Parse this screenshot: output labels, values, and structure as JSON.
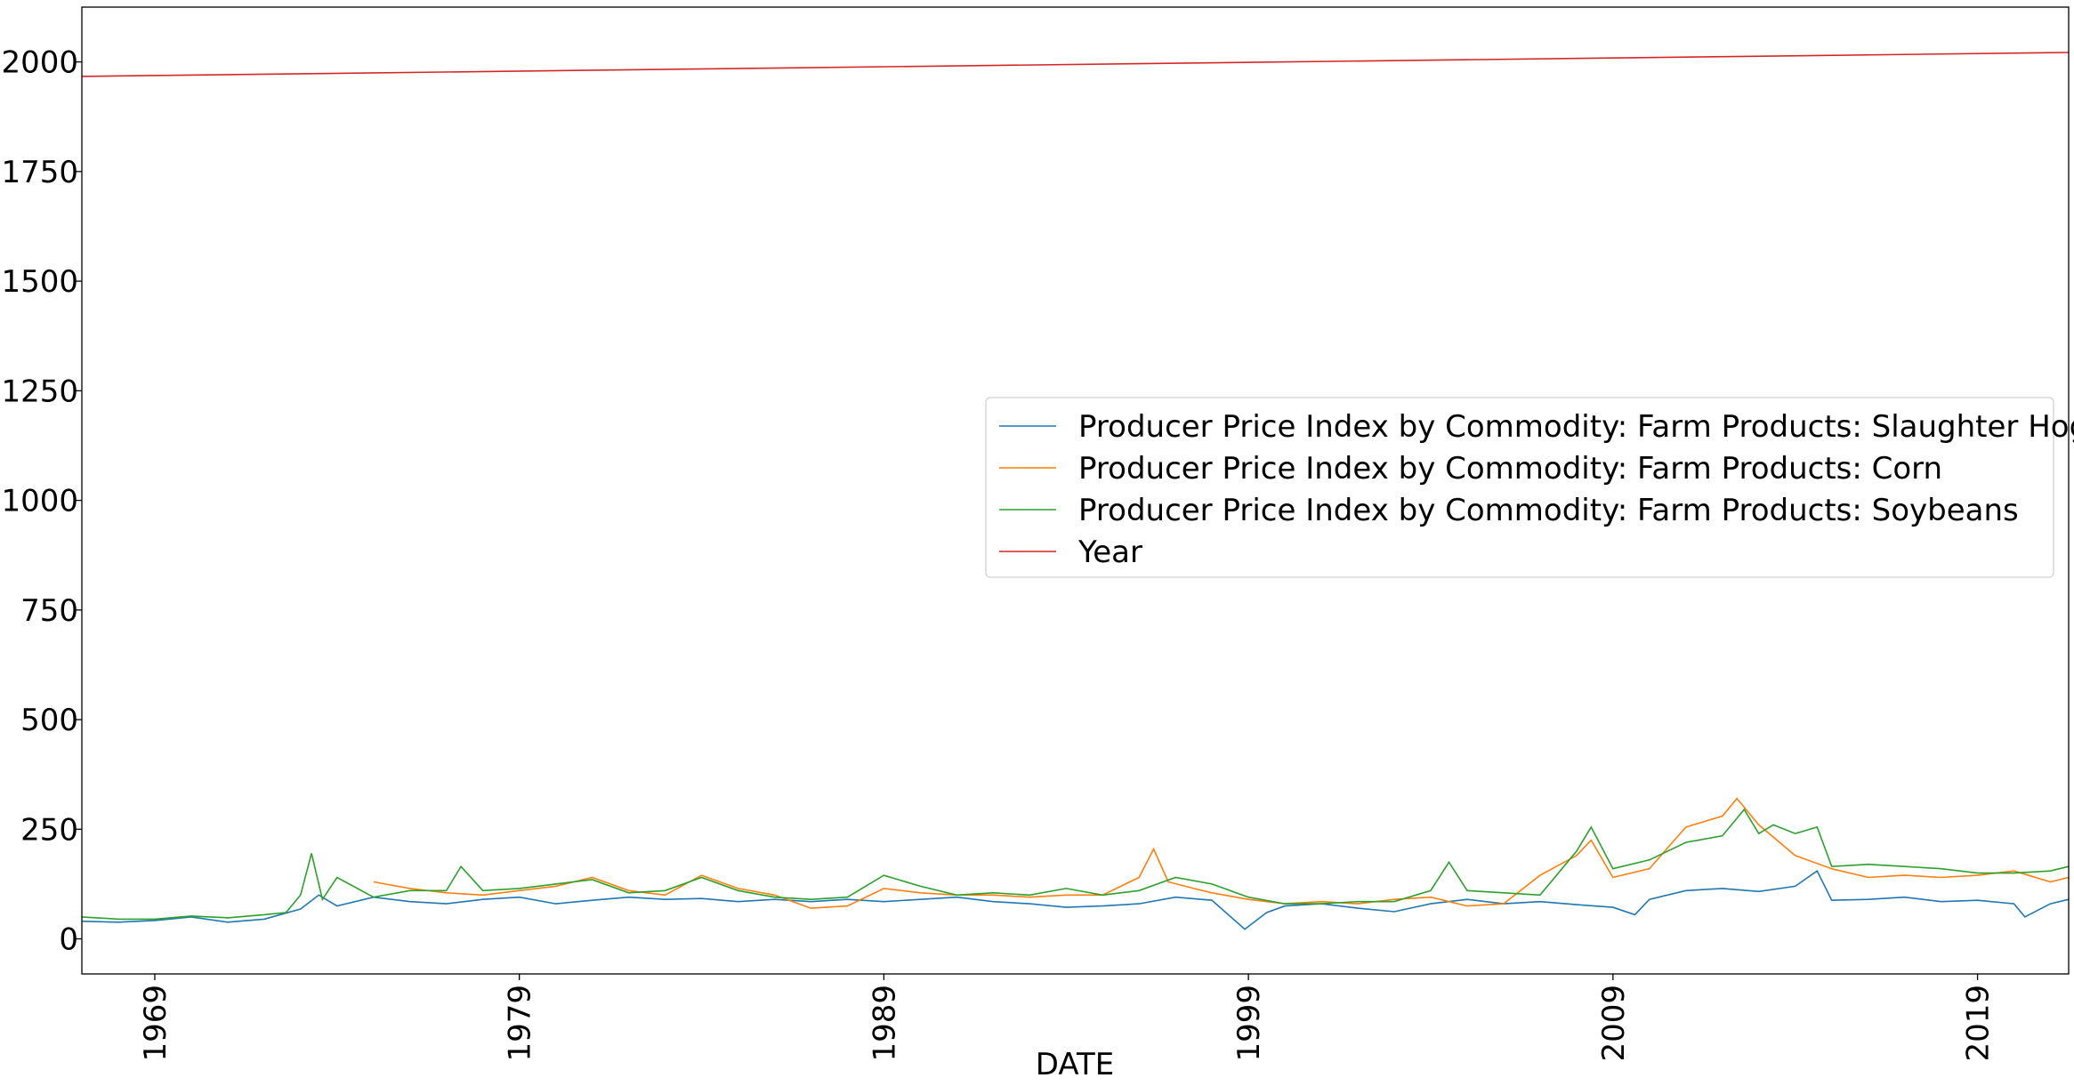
{
  "chart_data": {
    "type": "line",
    "title": "",
    "xlabel": "DATE",
    "ylabel": "",
    "xlim": [
      1967,
      2021.5
    ],
    "ylim": [
      -80,
      2125
    ],
    "x_ticks": [
      1969,
      1979,
      1989,
      1999,
      2009,
      2019
    ],
    "y_ticks": [
      0,
      250,
      500,
      750,
      1000,
      1250,
      1500,
      1750,
      2000
    ],
    "grid": false,
    "legend_position": "center-right",
    "series": [
      {
        "name": "Producer Price Index by Commodity: Farm Products: Slaughter Hogs",
        "color": "#1f77b4",
        "x": [
          1967,
          1968,
          1969,
          1970,
          1971,
          1972,
          1973,
          1973.5,
          1974,
          1975,
          1976,
          1977,
          1978,
          1979,
          1980,
          1981,
          1982,
          1983,
          1984,
          1985,
          1986,
          1987,
          1988,
          1989,
          1990,
          1991,
          1992,
          1993,
          1994,
          1995,
          1996,
          1997,
          1998,
          1998.9,
          1999.5,
          2000,
          2001,
          2002,
          2003,
          2004,
          2005,
          2006,
          2007,
          2008,
          2009,
          2009.6,
          2010,
          2011,
          2012,
          2013,
          2014,
          2014.6,
          2015,
          2016,
          2017,
          2018,
          2019,
          2020,
          2020.3,
          2021,
          2021.5
        ],
        "values": [
          40,
          38,
          42,
          50,
          38,
          45,
          68,
          100,
          75,
          95,
          85,
          80,
          90,
          95,
          80,
          88,
          95,
          90,
          92,
          85,
          90,
          85,
          90,
          85,
          90,
          95,
          85,
          80,
          72,
          75,
          80,
          95,
          88,
          22,
          60,
          75,
          80,
          70,
          62,
          80,
          90,
          80,
          85,
          78,
          72,
          55,
          90,
          110,
          115,
          108,
          120,
          155,
          88,
          90,
          95,
          85,
          88,
          80,
          50,
          80,
          90
        ]
      },
      {
        "name": "Producer Price Index by Commodity: Farm Products: Corn",
        "color": "#ff7f0e",
        "x": [
          1975,
          1976,
          1977,
          1978,
          1979,
          1980,
          1981,
          1982,
          1983,
          1984,
          1985,
          1986,
          1987,
          1988,
          1989,
          1990,
          1991,
          1992,
          1993,
          1994,
          1995,
          1996,
          1996.4,
          1996.8,
          1997.5,
          1998,
          1999,
          2000,
          2001,
          2002,
          2003,
          2004,
          2005,
          2006,
          2007,
          2008,
          2008.4,
          2009,
          2010,
          2011,
          2012,
          2012.4,
          2013,
          2014,
          2015,
          2016,
          2017,
          2018,
          2019,
          2020,
          2021,
          2021.5
        ],
        "values": [
          130,
          115,
          105,
          100,
          110,
          120,
          140,
          110,
          100,
          145,
          115,
          100,
          70,
          75,
          115,
          105,
          100,
          100,
          95,
          100,
          100,
          140,
          205,
          130,
          115,
          105,
          90,
          80,
          85,
          80,
          90,
          95,
          75,
          80,
          145,
          190,
          225,
          140,
          160,
          255,
          280,
          320,
          260,
          190,
          160,
          140,
          145,
          140,
          145,
          155,
          130,
          140
        ]
      },
      {
        "name": "Producer Price Index by Commodity: Farm Products: Soybeans",
        "color": "#2ca02c",
        "x": [
          1967,
          1968,
          1969,
          1970,
          1971,
          1972,
          1972.6,
          1973,
          1973.3,
          1973.6,
          1974,
          1975,
          1976,
          1977,
          1977.4,
          1978,
          1979,
          1980,
          1981,
          1982,
          1983,
          1984,
          1985,
          1986,
          1987,
          1988,
          1989,
          1990,
          1991,
          1992,
          1993,
          1994,
          1995,
          1996,
          1997,
          1998,
          1999,
          2000,
          2001,
          2002,
          2003,
          2004,
          2004.5,
          2005,
          2006,
          2007,
          2008,
          2008.4,
          2009,
          2010,
          2011,
          2012,
          2012.6,
          2013,
          2013.4,
          2014,
          2014.6,
          2015,
          2016,
          2017,
          2018,
          2019,
          2020,
          2021,
          2021.5
        ],
        "values": [
          50,
          45,
          45,
          52,
          48,
          55,
          60,
          100,
          195,
          90,
          140,
          95,
          110,
          110,
          165,
          110,
          115,
          125,
          135,
          105,
          110,
          140,
          110,
          95,
          90,
          95,
          145,
          120,
          100,
          105,
          100,
          115,
          100,
          110,
          140,
          125,
          95,
          80,
          80,
          85,
          85,
          110,
          175,
          110,
          105,
          100,
          200,
          255,
          160,
          180,
          220,
          235,
          295,
          240,
          260,
          240,
          255,
          165,
          170,
          165,
          160,
          150,
          150,
          155,
          165
        ]
      },
      {
        "name": "Year",
        "color": "#d62728",
        "x": [
          1967,
          2021.5
        ],
        "values": [
          1967,
          2021.5
        ]
      }
    ]
  }
}
